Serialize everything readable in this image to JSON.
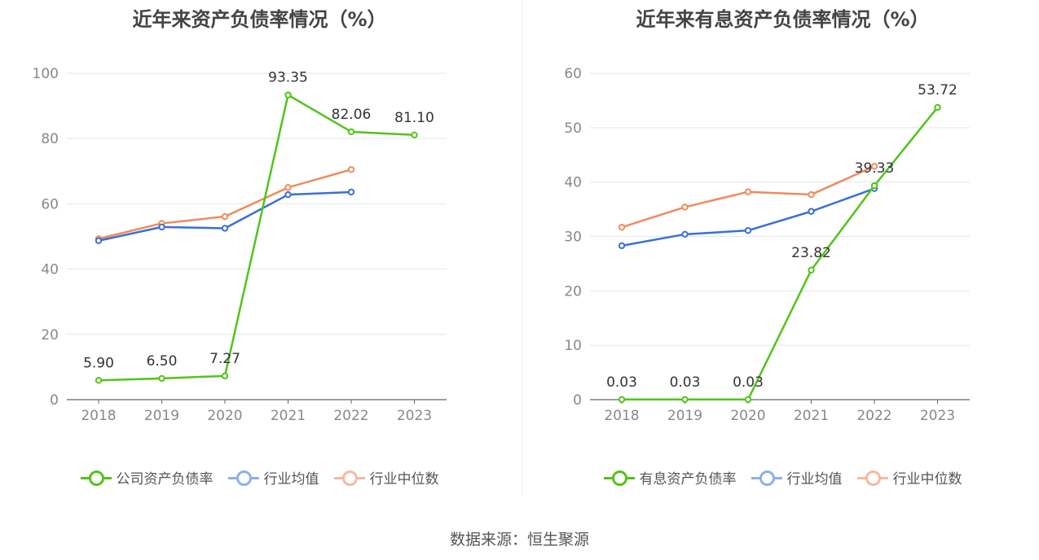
{
  "colors": {
    "company": "#52c41a",
    "avg": "#3a6fd8",
    "median": "#f08a5d",
    "avg_legend": "#8fb0ea",
    "median_legend": "#f6b9a0"
  },
  "footer": "数据来源：恒生聚源",
  "chart_data": [
    {
      "type": "line",
      "title": "近年来资产负债率情况（%）",
      "categories": [
        "2018",
        "2019",
        "2020",
        "2021",
        "2022",
        "2023"
      ],
      "ylim": [
        0,
        100
      ],
      "yticks": [
        0,
        20,
        40,
        60,
        80,
        100
      ],
      "series": [
        {
          "name": "公司资产负债率",
          "key": "company",
          "values": [
            5.9,
            6.5,
            7.27,
            93.35,
            82.06,
            81.1
          ],
          "labels": [
            "5.90",
            "6.50",
            "7.27",
            "93.35",
            "82.06",
            "81.10"
          ]
        },
        {
          "name": "行业均值",
          "key": "avg",
          "values": [
            48.7,
            52.9,
            52.5,
            62.8,
            63.6,
            null
          ]
        },
        {
          "name": "行业中位数",
          "key": "median",
          "values": [
            49.3,
            54.0,
            56.1,
            65.0,
            70.5,
            null
          ]
        }
      ]
    },
    {
      "type": "line",
      "title": "近年来有息资产负债率情况（%）",
      "categories": [
        "2018",
        "2019",
        "2020",
        "2021",
        "2022",
        "2023"
      ],
      "ylim": [
        0,
        60
      ],
      "yticks": [
        0,
        10,
        20,
        30,
        40,
        50,
        60
      ],
      "series": [
        {
          "name": "有息资产负债率",
          "key": "company",
          "values": [
            0.03,
            0.03,
            0.03,
            23.82,
            39.33,
            53.72
          ],
          "labels": [
            "0.03",
            "0.03",
            "0.03",
            "23.82",
            "39.33",
            "53.72"
          ]
        },
        {
          "name": "行业均值",
          "key": "avg",
          "values": [
            28.3,
            30.4,
            31.1,
            34.6,
            38.8,
            null
          ]
        },
        {
          "name": "行业中位数",
          "key": "median",
          "values": [
            31.7,
            35.4,
            38.2,
            37.7,
            42.9,
            null
          ]
        }
      ]
    }
  ]
}
